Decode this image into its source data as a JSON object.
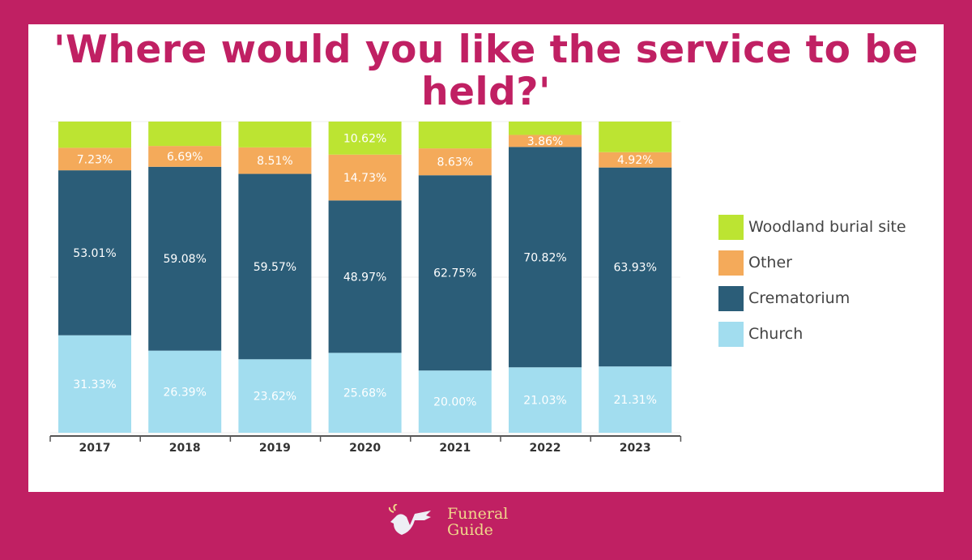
{
  "chart_data": {
    "type": "bar",
    "stacked": true,
    "title": "'Where would you like the service to be held?'",
    "categories": [
      "2017",
      "2018",
      "2019",
      "2020",
      "2021",
      "2022",
      "2023"
    ],
    "ylim": [
      0,
      100
    ],
    "grid": true,
    "legend_position": "right",
    "series": [
      {
        "name": "Church",
        "color": "#a2ddef",
        "values": [
          31.33,
          26.39,
          23.62,
          25.68,
          20.0,
          21.03,
          21.31
        ],
        "labels": [
          "31.33%",
          "26.39%",
          "23.62%",
          "25.68%",
          "20.00%",
          "21.03%",
          "21.31%"
        ]
      },
      {
        "name": "Crematorium",
        "color": "#2b5d78",
        "values": [
          53.01,
          59.08,
          59.57,
          48.97,
          62.75,
          70.82,
          63.93
        ],
        "labels": [
          "53.01%",
          "59.08%",
          "59.57%",
          "48.97%",
          "62.75%",
          "70.82%",
          "63.93%"
        ]
      },
      {
        "name": "Other",
        "color": "#f4aa5a",
        "values": [
          7.23,
          6.69,
          8.51,
          14.73,
          8.63,
          3.86,
          4.92
        ],
        "labels": [
          "7.23%",
          "6.69%",
          "8.51%",
          "14.73%",
          "8.63%",
          "3.86%",
          "4.92%"
        ]
      },
      {
        "name": "Woodland burial site",
        "color": "#bce432",
        "values": [
          8.43,
          7.84,
          8.3,
          10.62,
          8.62,
          4.29,
          9.84
        ],
        "labels": [
          null,
          null,
          null,
          "10.62%",
          null,
          null,
          null
        ]
      }
    ]
  },
  "legend_order": [
    3,
    2,
    1,
    0
  ],
  "brand": {
    "name_line1": "Funeral",
    "name_line2": "Guide",
    "background": "#c02063"
  }
}
